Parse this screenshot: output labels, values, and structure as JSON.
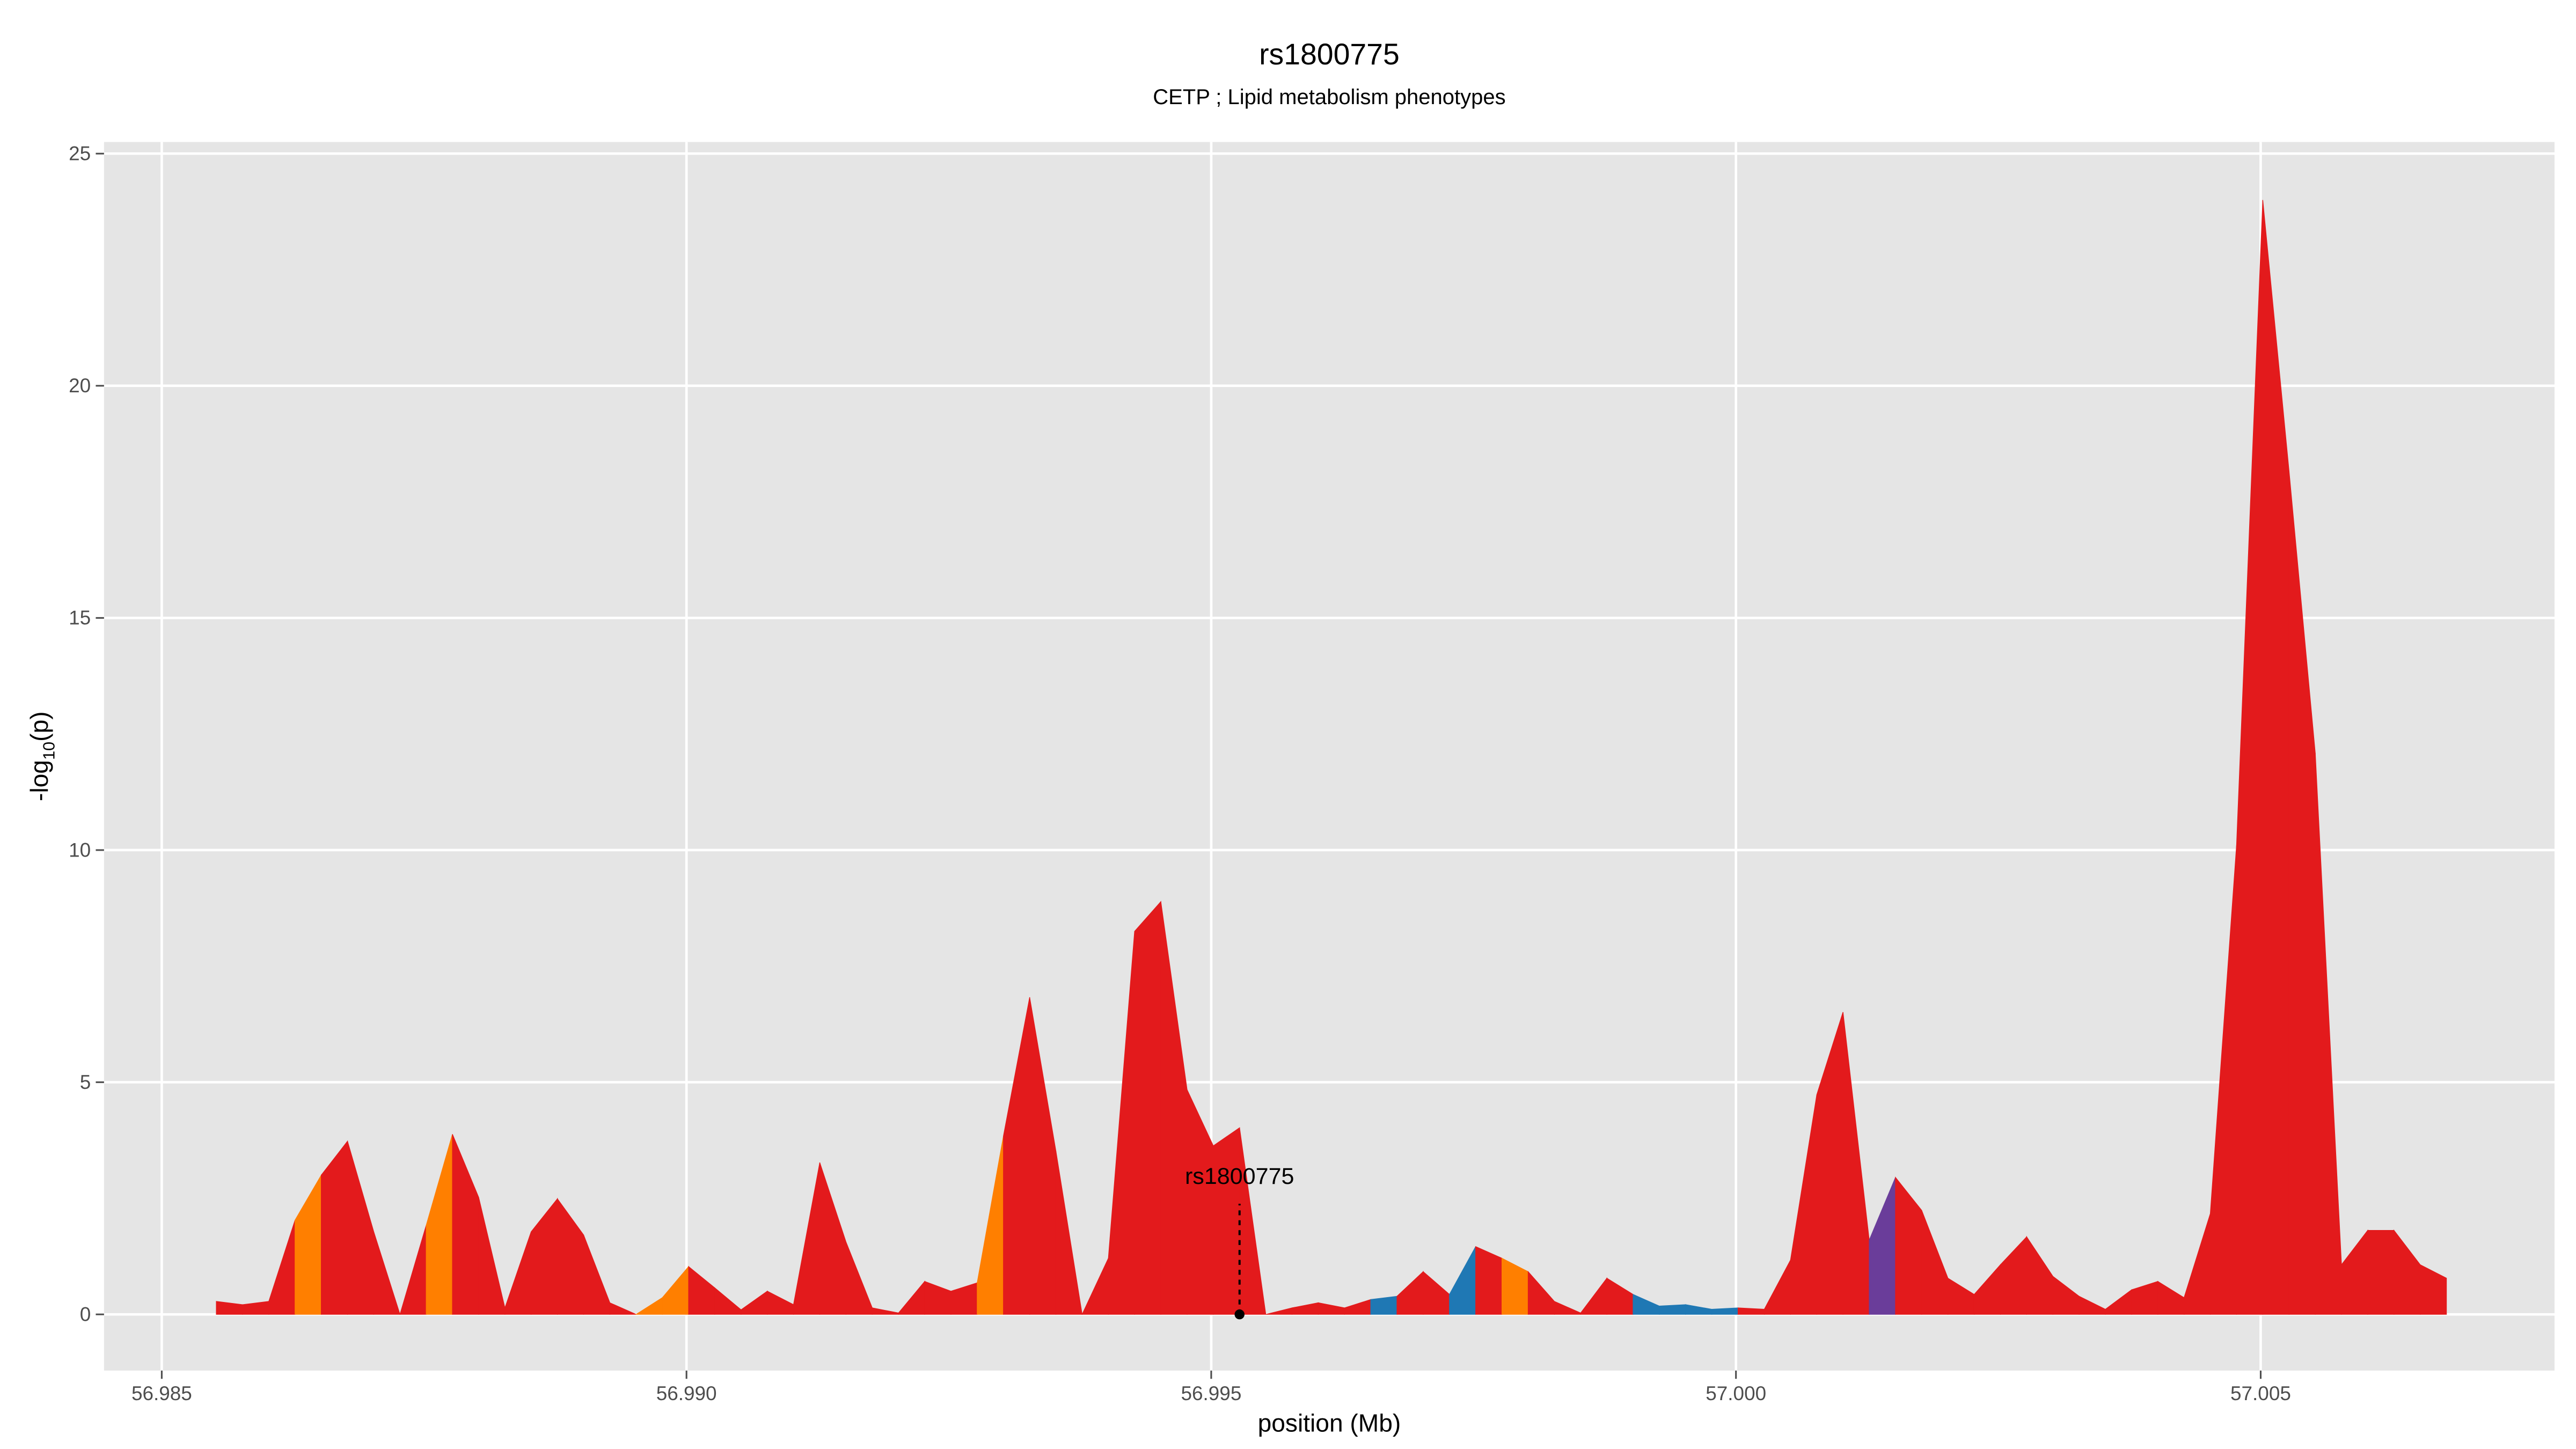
{
  "chart_data": {
    "type": "area",
    "title": "rs1800775",
    "subtitle": "CETP ; Lipid metabolism phenotypes",
    "xlabel": "position (Mb)",
    "ylabel_parts": [
      "-log",
      "10",
      "(p)"
    ],
    "x": [
      56.98552,
      56.98577,
      56.98602,
      56.98627,
      56.98652,
      56.98677,
      56.98702,
      56.98727,
      56.98752,
      56.98777,
      56.98802,
      56.98827,
      56.98852,
      56.98877,
      56.98902,
      56.98927,
      56.98952,
      56.98977,
      56.99002,
      56.99027,
      56.99052,
      56.99077,
      56.99102,
      56.99127,
      56.99152,
      56.99177,
      56.99202,
      56.99227,
      56.99252,
      56.99277,
      56.99302,
      56.99327,
      56.99352,
      56.99377,
      56.99402,
      56.99427,
      56.99452,
      56.99477,
      56.99502,
      56.99527,
      56.99552,
      56.99577,
      56.99602,
      56.99627,
      56.99652,
      56.99677,
      56.99702,
      56.99727,
      56.99752,
      56.99777,
      56.99802,
      56.99827,
      56.99852,
      56.99877,
      56.99902,
      56.99927,
      56.99952,
      56.99977,
      57.00002,
      57.00027,
      57.00052,
      57.00077,
      57.00102,
      57.00127,
      57.00152,
      57.00177,
      57.00202,
      57.00227,
      57.00252,
      57.00277,
      57.00302,
      57.00327,
      57.00352,
      57.00377,
      57.00402,
      57.00427,
      57.00452,
      57.00477,
      57.00502,
      57.00527,
      57.00552,
      57.00577,
      57.00602,
      57.00627,
      57.00652,
      57.00677
    ],
    "values": [
      0.28,
      0.21,
      0.28,
      2.03,
      3.0,
      3.73,
      1.78,
      0,
      1.92,
      3.88,
      2.52,
      0.14,
      1.78,
      2.49,
      1.71,
      0.25,
      0,
      0.36,
      1.03,
      0.57,
      0.1,
      0.5,
      0.21,
      3.27,
      1.56,
      0.14,
      0.03,
      0.71,
      0.5,
      0.68,
      3.84,
      6.83,
      3.52,
      0,
      1.21,
      8.25,
      8.89,
      4.84,
      3.63,
      4.02,
      0,
      0.14,
      0.25,
      0.14,
      0.32,
      0.39,
      0.92,
      0.43,
      1.46,
      1.21,
      0.92,
      0.28,
      0.03,
      0.78,
      0.43,
      0.18,
      0.21,
      0.11,
      0.14,
      0.11,
      1.17,
      4.73,
      6.51,
      1.6,
      2.95,
      2.24,
      0.78,
      0.43,
      1.07,
      1.67,
      0.82,
      0.39,
      0.11,
      0.53,
      0.71,
      0.36,
      2.17,
      10.1,
      24,
      18.17,
      12.09,
      1.07,
      1.81,
      1.81,
      1.07,
      0.78
    ],
    "segment_colors": [
      "#e31a1c",
      "#e31a1c",
      "#e31a1c",
      "#ff7f00",
      "#e31a1c",
      "#e31a1c",
      "#e31a1c",
      "#e31a1c",
      "#ff7f00",
      "#e31a1c",
      "#e31a1c",
      "#e31a1c",
      "#e31a1c",
      "#e31a1c",
      "#e31a1c",
      "#e31a1c",
      "#ff7f00",
      "#ff7f00",
      "#e31a1c",
      "#e31a1c",
      "#e31a1c",
      "#e31a1c",
      "#e31a1c",
      "#e31a1c",
      "#e31a1c",
      "#e31a1c",
      "#e31a1c",
      "#e31a1c",
      "#e31a1c",
      "#ff7f00",
      "#e31a1c",
      "#e31a1c",
      "#e31a1c",
      "#e31a1c",
      "#e31a1c",
      "#e31a1c",
      "#e31a1c",
      "#e31a1c",
      "#e31a1c",
      "#e31a1c",
      "#e31a1c",
      "#e31a1c",
      "#e31a1c",
      "#e31a1c",
      "#1f78b4",
      "#e31a1c",
      "#e31a1c",
      "#1f78b4",
      "#e31a1c",
      "#ff7f00",
      "#e31a1c",
      "#e31a1c",
      "#e31a1c",
      "#e31a1c",
      "#1f78b4",
      "#1f78b4",
      "#1f78b4",
      "#1f78b4",
      "#e31a1c",
      "#e31a1c",
      "#e31a1c",
      "#e31a1c",
      "#e31a1c",
      "#6a3d9a",
      "#e31a1c",
      "#e31a1c",
      "#e31a1c",
      "#e31a1c",
      "#e31a1c",
      "#e31a1c",
      "#e31a1c",
      "#e31a1c",
      "#e31a1c",
      "#e31a1c",
      "#e31a1c",
      "#e31a1c",
      "#e31a1c",
      "#e31a1c",
      "#e31a1c",
      "#e31a1c",
      "#e31a1c",
      "#e31a1c",
      "#e31a1c",
      "#e31a1c",
      "#e31a1c"
    ],
    "annotation": {
      "text": "rs1800775",
      "x": 56.99527,
      "y": 0
    },
    "xlim": [
      56.98445,
      57.0078
    ],
    "ylim": [
      -1.21,
      25.25
    ],
    "xticks": [
      56.985,
      {
        "value": 56.99,
        "label": "56.990"
      },
      56.995,
      {
        "value": 57,
        "label": "57.000"
      },
      57.005
    ],
    "yticks": [
      0,
      5,
      10,
      15,
      20,
      25
    ],
    "grid": true
  }
}
